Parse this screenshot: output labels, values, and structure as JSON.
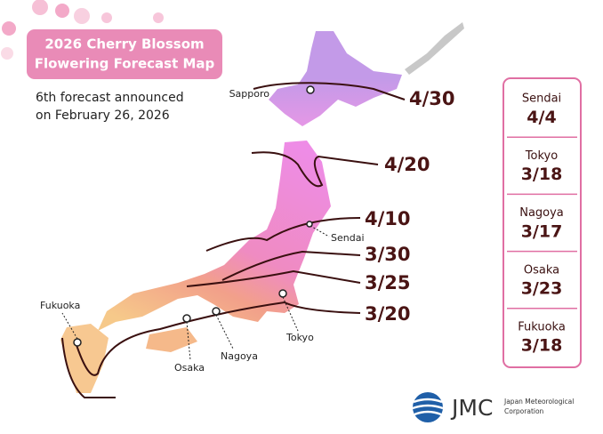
{
  "title": [
    "2026 Cherry Blossom",
    "Flowering Forecast Map"
  ],
  "subtitle": [
    "6th forecast announced",
    "on February 26, 2026"
  ],
  "isolines": [
    "4/30",
    "4/20",
    "4/10",
    "3/30",
    "3/25",
    "3/20"
  ],
  "map_labels": [
    "Sapporo",
    "Sendai",
    "Fukuoka",
    "Osaka",
    "Nagoya",
    "Tokyo"
  ],
  "forecast_panel": [
    {
      "city": "Sendai",
      "date": "4/4"
    },
    {
      "city": "Tokyo",
      "date": "3/18"
    },
    {
      "city": "Nagoya",
      "date": "3/17"
    },
    {
      "city": "Osaka",
      "date": "3/23"
    },
    {
      "city": "Fukuoka",
      "date": "3/18"
    }
  ],
  "logo": {
    "mark": "JMC",
    "name": [
      "Japan Meteorological",
      "Corporation"
    ]
  }
}
